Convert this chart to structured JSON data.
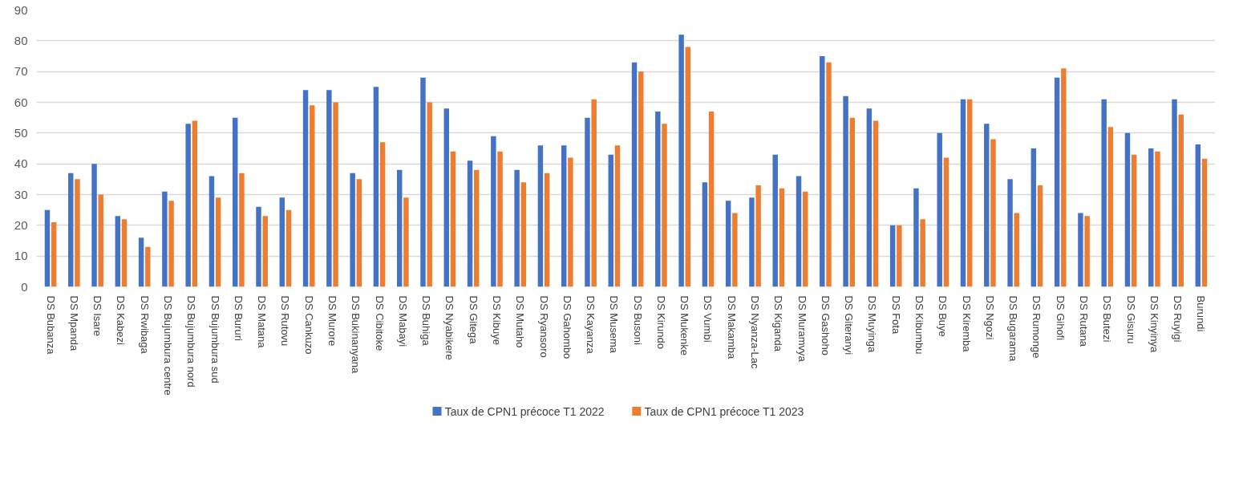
{
  "chart_data": {
    "type": "bar",
    "categories": [
      "DS Bubanza",
      "DS Mpanda",
      "DS Isare",
      "DS Kabezi",
      "DS Rwibaga",
      "DS Bujumbura centre",
      "DS Bujumbura nord",
      "DS Bujumbura sud",
      "DS Bururi",
      "DS Matana",
      "DS Rutovu",
      "DS Cankuzo",
      "DS Murore",
      "DS Bukinanyana",
      "DS Cibitoke",
      "DS Mabayi",
      "DS Buhiga",
      "DS Nyabikere",
      "DS Gitega",
      "DS Kibuye",
      "DS Mutaho",
      "DS Ryansoro",
      "DS Gahombo",
      "DS Kayanza",
      "DS Musema",
      "DS Busoni",
      "DS Kirundo",
      "DS Mukenke",
      "DS Vumbi",
      "DS Makamba",
      "DS Nyanza-Lac",
      "DS Kiganda",
      "DS Muramvya",
      "DS Gashoho",
      "DS Giteranyi",
      "DS Muyinga",
      "DS Fota",
      "DS Kibumbu",
      "DS Buye",
      "DS Kiremba",
      "DS Ngozi",
      "DS Bugarama",
      "DS Rumonge",
      "DS Gihofi",
      "DS Rutana",
      "DS Butezi",
      "DS Gisuru",
      "DS Kinyinya",
      "DS Ruyigi",
      "Burundi"
    ],
    "series": [
      {
        "name": "Taux de CPN1 précoce T1 2022",
        "color": "#4472c4",
        "values": [
          25,
          37,
          40,
          23,
          16,
          31,
          53,
          36,
          55,
          26,
          29,
          64,
          64,
          37,
          65,
          38,
          68,
          58,
          41,
          49,
          38,
          46,
          46,
          55,
          43,
          73,
          57,
          82,
          34,
          28,
          29,
          43,
          36,
          75,
          62,
          58,
          20,
          32,
          50,
          61,
          53,
          35,
          45,
          68,
          24,
          61,
          50,
          45,
          61,
          46.3
        ]
      },
      {
        "name": "Taux de CPN1 précoce T1 2023",
        "color": "#ed7d31",
        "values": [
          21,
          35,
          30,
          22,
          13,
          28,
          54,
          29,
          37,
          23,
          25,
          59,
          60,
          35,
          47,
          29,
          60,
          44,
          38,
          44,
          34,
          37,
          42,
          61,
          46,
          70,
          53,
          78,
          57,
          24,
          33,
          32,
          31,
          73,
          55,
          54,
          20,
          22,
          42,
          61,
          48,
          24,
          33,
          71,
          23,
          52,
          43,
          44,
          56,
          41.7
        ]
      }
    ],
    "ylim": [
      0,
      90
    ],
    "yticks": [
      0,
      10,
      20,
      30,
      40,
      50,
      60,
      70,
      80,
      90
    ],
    "grid": "y",
    "legend": "bottom"
  }
}
